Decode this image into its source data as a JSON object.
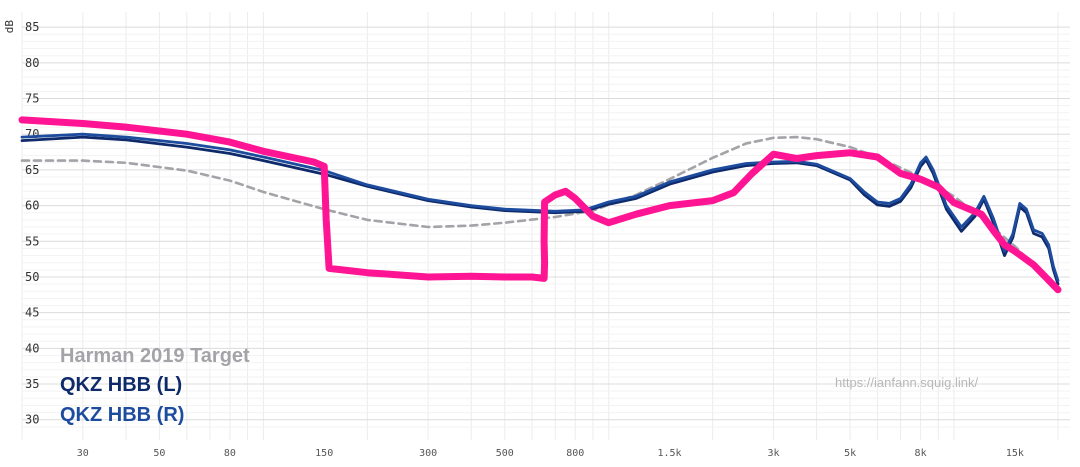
{
  "chart_data": {
    "type": "line",
    "ylabel": "dB",
    "xlabel": "",
    "x_scale": "log",
    "ylim": [
      28,
      86
    ],
    "xlim": [
      20,
      20000
    ],
    "grid": true,
    "y_ticks": [
      {
        "value": 85,
        "label": "85"
      },
      {
        "value": 80,
        "label": "80"
      },
      {
        "value": 75,
        "label": "75"
      },
      {
        "value": 70,
        "label": "70"
      },
      {
        "value": 65,
        "label": "65"
      },
      {
        "value": 60,
        "label": "60"
      },
      {
        "value": 55,
        "label": "55"
      },
      {
        "value": 50,
        "label": "50"
      },
      {
        "value": 45,
        "label": "45"
      },
      {
        "value": 40,
        "label": "40"
      },
      {
        "value": 35,
        "label": "35"
      },
      {
        "value": 30,
        "label": "30"
      }
    ],
    "x_ticks": [
      {
        "value": 30,
        "label": "30"
      },
      {
        "value": 50,
        "label": "50"
      },
      {
        "value": 80,
        "label": "80"
      },
      {
        "value": 150,
        "label": "150"
      },
      {
        "value": 300,
        "label": "300"
      },
      {
        "value": 500,
        "label": "500"
      },
      {
        "value": 800,
        "label": "800"
      },
      {
        "value": 1500,
        "label": "1.5k"
      },
      {
        "value": 3000,
        "label": "3k"
      },
      {
        "value": 5000,
        "label": "5k"
      },
      {
        "value": 8000,
        "label": "8k"
      },
      {
        "value": 15000,
        "label": "15k"
      }
    ],
    "legend": [
      {
        "label": "Harman 2019 Target",
        "color": "#a3a3a8"
      },
      {
        "label": "QKZ HBB (L)",
        "color": "#0e2a6b"
      },
      {
        "label": "QKZ HBB (R)",
        "color": "#1d4c9e"
      }
    ],
    "watermark": "https://ianfann.squig.link/",
    "series": [
      {
        "name": "Harman 2019 Target",
        "color": "#a3a3a8",
        "style": "dashed",
        "points": [
          [
            20,
            66.3
          ],
          [
            30,
            66.3
          ],
          [
            40,
            66.0
          ],
          [
            60,
            64.9
          ],
          [
            80,
            63.5
          ],
          [
            100,
            61.9
          ],
          [
            150,
            59.5
          ],
          [
            200,
            58.0
          ],
          [
            300,
            57.0
          ],
          [
            400,
            57.2
          ],
          [
            500,
            57.6
          ],
          [
            700,
            58.4
          ],
          [
            900,
            59.3
          ],
          [
            1200,
            61.5
          ],
          [
            1500,
            63.7
          ],
          [
            2000,
            66.7
          ],
          [
            2500,
            68.7
          ],
          [
            3000,
            69.5
          ],
          [
            3500,
            69.6
          ],
          [
            4000,
            69.3
          ],
          [
            5000,
            68.2
          ],
          [
            6000,
            66.8
          ],
          [
            7000,
            65.3
          ],
          [
            8000,
            64.0
          ],
          [
            10000,
            61.3
          ],
          [
            12000,
            58.3
          ],
          [
            15000,
            54.3
          ],
          [
            18000,
            50.5
          ],
          [
            20000,
            48.4
          ]
        ]
      },
      {
        "name": "QKZ HBB (L)",
        "color": "#0e2a6b",
        "style": "solid",
        "points": [
          [
            20,
            69.1
          ],
          [
            30,
            69.6
          ],
          [
            40,
            69.2
          ],
          [
            60,
            68.2
          ],
          [
            80,
            67.3
          ],
          [
            100,
            66.3
          ],
          [
            150,
            64.4
          ],
          [
            200,
            62.7
          ],
          [
            300,
            60.7
          ],
          [
            400,
            59.8
          ],
          [
            500,
            59.3
          ],
          [
            700,
            59.0
          ],
          [
            850,
            59.2
          ],
          [
            1000,
            60.2
          ],
          [
            1200,
            61.0
          ],
          [
            1500,
            63.0
          ],
          [
            2000,
            64.7
          ],
          [
            2500,
            65.6
          ],
          [
            3000,
            65.9
          ],
          [
            3500,
            66.0
          ],
          [
            4000,
            65.6
          ],
          [
            5000,
            63.6
          ],
          [
            5500,
            61.5
          ],
          [
            6000,
            60.1
          ],
          [
            6500,
            59.9
          ],
          [
            7000,
            60.6
          ],
          [
            7500,
            62.5
          ],
          [
            8000,
            65.5
          ],
          [
            8300,
            66.4
          ],
          [
            8700,
            64.5
          ],
          [
            9500,
            59.5
          ],
          [
            10500,
            56.4
          ],
          [
            11500,
            58.5
          ],
          [
            12200,
            60.9
          ],
          [
            13000,
            57.6
          ],
          [
            14000,
            53.0
          ],
          [
            14800,
            55.5
          ],
          [
            15500,
            59.8
          ],
          [
            16200,
            59.0
          ],
          [
            17000,
            56.1
          ],
          [
            18000,
            55.6
          ],
          [
            18800,
            54.0
          ],
          [
            19400,
            51.0
          ],
          [
            20000,
            49.0
          ]
        ]
      },
      {
        "name": "QKZ HBB (R)",
        "color": "#1d4c9e",
        "style": "solid",
        "points": [
          [
            20,
            69.6
          ],
          [
            30,
            70.0
          ],
          [
            40,
            69.6
          ],
          [
            60,
            68.7
          ],
          [
            80,
            67.8
          ],
          [
            100,
            66.8
          ],
          [
            150,
            64.9
          ],
          [
            200,
            62.9
          ],
          [
            300,
            60.9
          ],
          [
            400,
            60.0
          ],
          [
            500,
            59.5
          ],
          [
            700,
            59.2
          ],
          [
            850,
            59.4
          ],
          [
            1000,
            60.5
          ],
          [
            1200,
            61.3
          ],
          [
            1500,
            63.3
          ],
          [
            2000,
            65.0
          ],
          [
            2500,
            65.9
          ],
          [
            3000,
            66.1
          ],
          [
            3500,
            66.2
          ],
          [
            4000,
            65.8
          ],
          [
            5000,
            63.8
          ],
          [
            5500,
            61.9
          ],
          [
            6000,
            60.5
          ],
          [
            6500,
            60.3
          ],
          [
            7000,
            61.0
          ],
          [
            7500,
            63.0
          ],
          [
            8000,
            66.0
          ],
          [
            8300,
            66.8
          ],
          [
            8700,
            65.0
          ],
          [
            9500,
            60.0
          ],
          [
            10500,
            57.0
          ],
          [
            11500,
            59.0
          ],
          [
            12200,
            61.3
          ],
          [
            13000,
            58.2
          ],
          [
            14000,
            53.6
          ],
          [
            14800,
            56.0
          ],
          [
            15500,
            60.3
          ],
          [
            16200,
            59.5
          ],
          [
            17000,
            56.6
          ],
          [
            18000,
            56.1
          ],
          [
            18800,
            54.5
          ],
          [
            19400,
            51.5
          ],
          [
            20000,
            49.5
          ]
        ]
      },
      {
        "name": "",
        "color": "#ff1493",
        "style": "marker",
        "points": [
          [
            20,
            72.0
          ],
          [
            30,
            71.5
          ],
          [
            40,
            71.0
          ],
          [
            60,
            70.0
          ],
          [
            80,
            68.9
          ],
          [
            100,
            67.6
          ],
          [
            140,
            66.1
          ],
          [
            150,
            65.5
          ],
          [
            152,
            58.0
          ],
          [
            155,
            51.2
          ],
          [
            200,
            50.6
          ],
          [
            300,
            50.0
          ],
          [
            400,
            50.1
          ],
          [
            500,
            50.0
          ],
          [
            600,
            50.0
          ],
          [
            650,
            49.8
          ],
          [
            652,
            52.0
          ],
          [
            650,
            55.0
          ],
          [
            652,
            60.5
          ],
          [
            700,
            61.5
          ],
          [
            750,
            62.0
          ],
          [
            800,
            61.0
          ],
          [
            900,
            58.5
          ],
          [
            1000,
            57.6
          ],
          [
            1200,
            58.8
          ],
          [
            1500,
            60.0
          ],
          [
            2000,
            60.7
          ],
          [
            2300,
            61.8
          ],
          [
            2600,
            64.5
          ],
          [
            3000,
            67.2
          ],
          [
            3500,
            66.6
          ],
          [
            4000,
            67.0
          ],
          [
            5000,
            67.4
          ],
          [
            6000,
            66.8
          ],
          [
            7000,
            64.5
          ],
          [
            8000,
            63.7
          ],
          [
            9000,
            62.6
          ],
          [
            10000,
            60.4
          ],
          [
            12000,
            58.8
          ],
          [
            13000,
            56.5
          ],
          [
            14000,
            54.5
          ],
          [
            15000,
            53.6
          ],
          [
            17000,
            51.7
          ],
          [
            20000,
            48.2
          ]
        ]
      }
    ]
  }
}
